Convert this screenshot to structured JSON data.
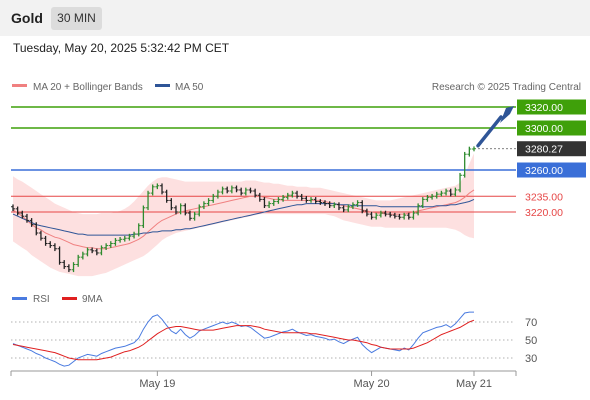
{
  "header": {
    "title": "Gold",
    "timeframe": "30 MIN"
  },
  "datetime": "Tuesday, May 20, 2025 5:32:42 PM CET",
  "legend": {
    "ma20_label": "MA 20 + Bollinger Bands",
    "ma50_label": "MA 50",
    "copyright": "Research © 2025 Trading Central",
    "rsi_label": "RSI",
    "rsi_ma_label": "9MA"
  },
  "colors": {
    "resistance": "#3fa00a",
    "pivot": "#3a6fd8",
    "support": "#e64646",
    "price_tag": "#333333",
    "ma20": "#f08080",
    "ma50": "#2f5597",
    "rsi": "#4a7be0",
    "rsi_ma": "#e02020",
    "arrow": "#2f5597",
    "band_fill": "#fde0e0"
  },
  "chart_data": [
    {
      "type": "candlestick",
      "title": "",
      "y_unit": "USD",
      "x_tick_labels": [
        "May 19",
        "May 20",
        "May 21"
      ],
      "ylim": [
        3175,
        3330
      ],
      "levels": [
        {
          "value": 3320.0,
          "label": "3320.00",
          "kind": "resistance"
        },
        {
          "value": 3300.0,
          "label": "3300.00",
          "kind": "resistance"
        },
        {
          "value": 3280.27,
          "label": "3280.27",
          "kind": "last_price"
        },
        {
          "value": 3260.0,
          "label": "3260.00",
          "kind": "pivot"
        },
        {
          "value": 3235.0,
          "label": "3235.00",
          "kind": "support"
        },
        {
          "value": 3220.0,
          "label": "3220.00",
          "kind": "support"
        }
      ],
      "close": [
        3223,
        3219,
        3216,
        3212,
        3208,
        3200,
        3195,
        3190,
        3188,
        3185,
        3172,
        3168,
        3165,
        3170,
        3177,
        3180,
        3184,
        3183,
        3181,
        3186,
        3188,
        3190,
        3193,
        3194,
        3195,
        3197,
        3199,
        3207,
        3224,
        3238,
        3244,
        3245,
        3239,
        3231,
        3224,
        3220,
        3226,
        3219,
        3214,
        3218,
        3225,
        3228,
        3231,
        3235,
        3239,
        3242,
        3240,
        3243,
        3241,
        3238,
        3241,
        3240,
        3236,
        3232,
        3226,
        3228,
        3230,
        3232,
        3234,
        3236,
        3238,
        3235,
        3233,
        3231,
        3232,
        3230,
        3229,
        3228,
        3226,
        3227,
        3224,
        3222,
        3225,
        3227,
        3229,
        3221,
        3218,
        3215,
        3217,
        3219,
        3218,
        3217,
        3216,
        3215,
        3217,
        3215,
        3219,
        3226,
        3232,
        3234,
        3235,
        3237,
        3238,
        3240,
        3237,
        3241,
        3255,
        3275,
        3280,
        3280.27
      ],
      "ma20": [
        3222,
        3219,
        3216,
        3212,
        3208,
        3205,
        3203,
        3200,
        3198,
        3196,
        3195,
        3193,
        3191,
        3189,
        3188,
        3187,
        3186,
        3186,
        3185,
        3185,
        3185,
        3186,
        3187,
        3188,
        3189,
        3190,
        3192,
        3194,
        3197,
        3201,
        3205,
        3209,
        3212,
        3214,
        3216,
        3218,
        3220,
        3221,
        3222,
        3223,
        3224,
        3225,
        3226,
        3227,
        3228,
        3229,
        3230,
        3231,
        3232,
        3233,
        3234,
        3235,
        3235,
        3235,
        3234,
        3233,
        3232,
        3232,
        3231,
        3231,
        3231,
        3231,
        3231,
        3231,
        3231,
        3231,
        3231,
        3230,
        3229,
        3228,
        3227,
        3226,
        3225,
        3224,
        3223,
        3222,
        3221,
        3220,
        3219,
        3219,
        3218,
        3218,
        3218,
        3218,
        3218,
        3219,
        3220,
        3221,
        3222,
        3223,
        3224,
        3225,
        3226,
        3227,
        3228,
        3229,
        3231,
        3234,
        3238,
        3241
      ],
      "ma50": [
        3218,
        3216,
        3214,
        3212,
        3210,
        3208,
        3207,
        3206,
        3205,
        3204,
        3203,
        3202,
        3201,
        3200,
        3199,
        3199,
        3198,
        3198,
        3198,
        3198,
        3198,
        3198,
        3198,
        3198,
        3198,
        3198,
        3199,
        3199,
        3200,
        3200,
        3201,
        3201,
        3202,
        3202,
        3202,
        3203,
        3203,
        3204,
        3204,
        3205,
        3206,
        3207,
        3208,
        3209,
        3210,
        3211,
        3212,
        3213,
        3214,
        3215,
        3216,
        3217,
        3218,
        3219,
        3220,
        3221,
        3222,
        3223,
        3224,
        3225,
        3226,
        3227,
        3227,
        3228,
        3228,
        3228,
        3228,
        3228,
        3228,
        3228,
        3227,
        3227,
        3227,
        3226,
        3226,
        3226,
        3226,
        3226,
        3226,
        3225,
        3225,
        3225,
        3225,
        3225,
        3225,
        3225,
        3225,
        3225,
        3225,
        3225,
        3225,
        3226,
        3226,
        3226,
        3227,
        3227,
        3228,
        3229,
        3230,
        3232
      ],
      "bb_upper": [
        3254,
        3251,
        3249,
        3246,
        3243,
        3240,
        3237,
        3234,
        3231,
        3228,
        3226,
        3224,
        3222,
        3220,
        3219,
        3218,
        3218,
        3218,
        3218,
        3219,
        3219,
        3219,
        3220,
        3221,
        3223,
        3226,
        3230,
        3235,
        3240,
        3245,
        3249,
        3252,
        3253,
        3253,
        3252,
        3251,
        3250,
        3249,
        3249,
        3249,
        3249,
        3249,
        3249,
        3249,
        3249,
        3249,
        3249,
        3249,
        3249,
        3249,
        3250,
        3250,
        3250,
        3249,
        3248,
        3248,
        3247,
        3247,
        3246,
        3245,
        3245,
        3244,
        3244,
        3244,
        3243,
        3243,
        3243,
        3242,
        3241,
        3240,
        3239,
        3238,
        3237,
        3236,
        3235,
        3234,
        3233,
        3232,
        3231,
        3231,
        3231,
        3231,
        3232,
        3233,
        3234,
        3235,
        3236,
        3237,
        3238,
        3239,
        3240,
        3241,
        3242,
        3243,
        3244,
        3245,
        3248,
        3255,
        3266,
        3276
      ],
      "bb_lower": [
        3192,
        3189,
        3186,
        3183,
        3179,
        3176,
        3173,
        3170,
        3167,
        3165,
        3163,
        3162,
        3161,
        3160,
        3159,
        3159,
        3159,
        3159,
        3160,
        3161,
        3162,
        3164,
        3166,
        3168,
        3170,
        3172,
        3174,
        3176,
        3178,
        3181,
        3185,
        3189,
        3193,
        3196,
        3198,
        3200,
        3201,
        3202,
        3203,
        3204,
        3205,
        3206,
        3207,
        3208,
        3209,
        3210,
        3211,
        3212,
        3213,
        3214,
        3215,
        3216,
        3217,
        3218,
        3218,
        3218,
        3218,
        3218,
        3218,
        3218,
        3218,
        3218,
        3218,
        3218,
        3218,
        3218,
        3218,
        3218,
        3217,
        3216,
        3214,
        3212,
        3211,
        3210,
        3209,
        3208,
        3207,
        3206,
        3206,
        3206,
        3205,
        3205,
        3205,
        3205,
        3205,
        3205,
        3205,
        3205,
        3205,
        3205,
        3205,
        3205,
        3205,
        3205,
        3204,
        3203,
        3201,
        3198,
        3196,
        3195
      ]
    },
    {
      "type": "line",
      "title": "",
      "ylim": [
        0,
        100
      ],
      "y_tick_labels": [
        "70",
        "50",
        "30"
      ],
      "y_ticks": [
        70,
        50,
        30
      ],
      "reference_levels": [
        30,
        50,
        70
      ],
      "rsi": [
        46,
        44,
        42,
        40,
        38,
        35,
        33,
        30,
        28,
        26,
        23,
        21,
        22,
        26,
        30,
        32,
        34,
        33,
        32,
        35,
        37,
        39,
        41,
        42,
        43,
        45,
        47,
        52,
        62,
        70,
        76,
        78,
        73,
        66,
        60,
        57,
        62,
        56,
        52,
        55,
        60,
        62,
        64,
        66,
        68,
        70,
        68,
        70,
        68,
        65,
        66,
        64,
        60,
        56,
        52,
        53,
        55,
        57,
        59,
        60,
        62,
        59,
        57,
        55,
        56,
        54,
        53,
        52,
        50,
        51,
        48,
        46,
        49,
        51,
        53,
        45,
        40,
        36,
        39,
        42,
        41,
        40,
        39,
        38,
        41,
        39,
        45,
        52,
        58,
        60,
        62,
        64,
        65,
        67,
        64,
        68,
        74,
        80,
        81,
        81
      ],
      "rsi_ma": [
        45,
        44,
        43,
        42,
        41,
        40,
        39,
        38,
        37,
        36,
        34,
        32,
        30,
        29,
        28,
        28,
        28,
        28,
        28,
        29,
        30,
        31,
        33,
        35,
        37,
        38,
        40,
        42,
        45,
        49,
        53,
        57,
        60,
        63,
        64,
        65,
        65,
        64,
        63,
        62,
        61,
        61,
        61,
        61,
        62,
        63,
        64,
        65,
        66,
        66,
        66,
        66,
        65,
        64,
        62,
        61,
        60,
        59,
        58,
        58,
        58,
        58,
        58,
        58,
        57,
        57,
        56,
        55,
        54,
        53,
        52,
        51,
        50,
        50,
        49,
        48,
        47,
        45,
        44,
        42,
        41,
        40,
        40,
        40,
        40,
        40,
        41,
        43,
        45,
        47,
        50,
        53,
        56,
        58,
        60,
        62,
        64,
        67,
        70,
        72
      ]
    }
  ]
}
